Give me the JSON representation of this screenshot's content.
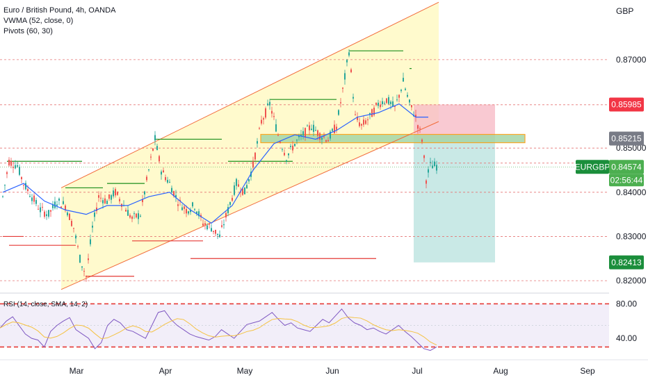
{
  "legend": {
    "title": "Euro / British Pound, 4h, OANDA",
    "vwma": "VWMA (52, close, 0)",
    "pivots": "Pivots (60, 30)",
    "rsi": "RSI (14, close, SMA, 14, 2)"
  },
  "currency": "GBP",
  "colors": {
    "candle_up": "#26a69a",
    "candle_down": "#ef5350",
    "vwma": "#2962ff",
    "channel_line": "#f26b3a",
    "channel_fill": "#fff9c4",
    "pivot_high": "#1b8e1b",
    "pivot_low": "#e53935",
    "rsi_line": "#7e57c2",
    "rsi_signal": "#f5c242",
    "rsi_band": "#ede7f6",
    "rsi_level": "#e53935",
    "tag_red": "#f23645",
    "tag_gray": "#787b86",
    "tag_green": "#4caf50",
    "tag_dark_green": "#1b8e3b",
    "stop_zone": "#f8bbc7",
    "target_zone": "#b2dfdb",
    "entry_zone": "#a5d6a7",
    "entry_border": "#ff9800"
  },
  "price_tags": {
    "upper": "0.85985",
    "entry": "0.85215",
    "symbol": "EURGBP",
    "last": "0.84574",
    "countdown": "02:56:44",
    "target": "0.82413"
  },
  "rsi_axis": [
    "80.00",
    "40.00"
  ],
  "chart_data": {
    "type": "line",
    "title": "Euro / British Pound, 4h, OANDA",
    "x_ticks": [
      "Mar",
      "Apr",
      "May",
      "Jun",
      "Jul",
      "Aug",
      "Sep"
    ],
    "y_ticks": [
      0.82,
      0.83,
      0.84,
      0.85,
      0.87
    ],
    "ylim": [
      0.8175,
      0.8835
    ],
    "series": [
      {
        "name": "EURGBP",
        "points": [
          [
            0,
            0.839
          ],
          [
            3,
            0.847
          ],
          [
            7,
            0.846
          ],
          [
            10,
            0.842
          ],
          [
            14,
            0.839
          ],
          [
            18,
            0.836
          ],
          [
            22,
            0.835
          ],
          [
            26,
            0.838
          ],
          [
            30,
            0.837
          ],
          [
            34,
            0.832
          ],
          [
            37,
            0.825
          ],
          [
            40,
            0.821
          ],
          [
            43,
            0.832
          ],
          [
            46,
            0.839
          ],
          [
            50,
            0.838
          ],
          [
            54,
            0.84
          ],
          [
            58,
            0.837
          ],
          [
            62,
            0.834
          ],
          [
            66,
            0.835
          ],
          [
            70,
            0.845
          ],
          [
            73,
            0.852
          ],
          [
            76,
            0.845
          ],
          [
            80,
            0.842
          ],
          [
            84,
            0.838
          ],
          [
            88,
            0.836
          ],
          [
            92,
            0.837
          ],
          [
            96,
            0.833
          ],
          [
            100,
            0.832
          ],
          [
            104,
            0.83
          ],
          [
            108,
            0.836
          ],
          [
            112,
            0.842
          ],
          [
            116,
            0.84
          ],
          [
            120,
            0.846
          ],
          [
            124,
            0.856
          ],
          [
            128,
            0.86
          ],
          [
            132,
            0.853
          ],
          [
            136,
            0.848
          ],
          [
            140,
            0.851
          ],
          [
            144,
            0.853
          ],
          [
            148,
            0.855
          ],
          [
            152,
            0.853
          ],
          [
            156,
            0.852
          ],
          [
            160,
            0.855
          ],
          [
            163,
            0.863
          ],
          [
            166,
            0.872
          ],
          [
            169,
            0.857
          ],
          [
            172,
            0.855
          ],
          [
            176,
            0.857
          ],
          [
            180,
            0.86
          ],
          [
            184,
            0.861
          ],
          [
            188,
            0.859
          ],
          [
            192,
            0.865
          ],
          [
            195,
            0.86
          ],
          [
            198,
            0.857
          ],
          [
            201,
            0.852
          ],
          [
            203,
            0.843
          ],
          [
            205,
            0.846
          ],
          [
            208,
            0.846
          ]
        ]
      }
    ],
    "vwma": [
      [
        0,
        0.84
      ],
      [
        10,
        0.842
      ],
      [
        20,
        0.838
      ],
      [
        30,
        0.836
      ],
      [
        40,
        0.835
      ],
      [
        50,
        0.837
      ],
      [
        60,
        0.837
      ],
      [
        70,
        0.839
      ],
      [
        80,
        0.84
      ],
      [
        90,
        0.836
      ],
      [
        100,
        0.833
      ],
      [
        110,
        0.837
      ],
      [
        120,
        0.845
      ],
      [
        130,
        0.851
      ],
      [
        140,
        0.853
      ],
      [
        150,
        0.852
      ],
      [
        160,
        0.854
      ],
      [
        170,
        0.857
      ],
      [
        180,
        0.858
      ],
      [
        190,
        0.86
      ],
      [
        198,
        0.857
      ],
      [
        204,
        0.857
      ]
    ],
    "pivot_highs": [
      [
        2,
        0.847,
        36
      ],
      [
        30,
        0.841,
        18
      ],
      [
        50,
        0.842,
        18
      ],
      [
        73,
        0.852,
        32
      ],
      [
        108,
        0.847,
        31
      ],
      [
        128,
        0.861,
        32
      ],
      [
        166,
        0.872,
        26
      ],
      [
        195,
        0.868,
        1
      ]
    ],
    "pivot_lows": [
      [
        0,
        0.83,
        10
      ],
      [
        3,
        0.828,
        32
      ],
      [
        40,
        0.821,
        23
      ],
      [
        62,
        0.829,
        34
      ],
      [
        90,
        0.825,
        89
      ]
    ],
    "channel": {
      "lower": [
        [
          28,
          0.818
        ],
        [
          209,
          0.856
        ]
      ],
      "upper": [
        [
          28,
          0.841
        ],
        [
          209,
          0.883
        ]
      ]
    },
    "position": {
      "entry": 0.85215,
      "stop": 0.85985,
      "target": 0.82413,
      "x_start": 197,
      "x_end": 236
    },
    "rsi": {
      "levels": [
        80,
        30
      ],
      "ylim": [
        20,
        90
      ],
      "values": [
        52,
        60,
        65,
        55,
        45,
        40,
        38,
        30,
        48,
        55,
        60,
        64,
        50,
        45,
        40,
        28,
        35,
        55,
        62,
        58,
        50,
        48,
        44,
        40,
        55,
        70,
        72,
        62,
        55,
        50,
        45,
        42,
        40,
        38,
        42,
        50,
        45,
        40,
        48,
        56,
        58,
        60,
        65,
        70,
        62,
        55,
        58,
        52,
        50,
        48,
        55,
        62,
        58,
        66,
        74,
        64,
        58,
        55,
        50,
        52,
        48,
        45,
        50,
        55,
        48,
        42,
        35,
        28,
        26,
        30
      ]
    }
  }
}
